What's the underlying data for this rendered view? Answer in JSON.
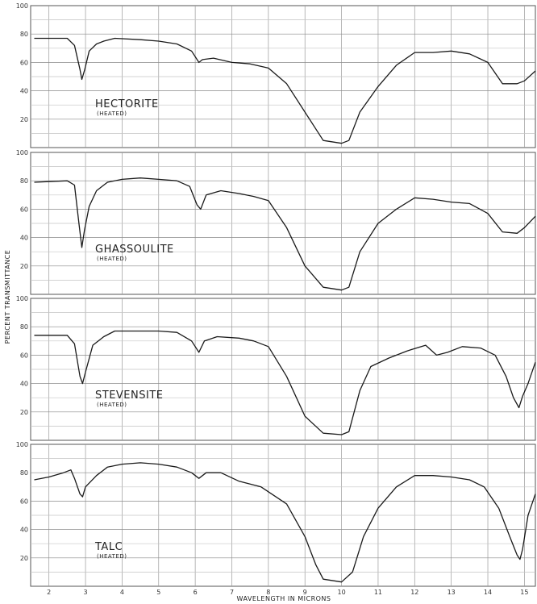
{
  "chart_data": {
    "type": "line",
    "xlabel": "WAVELENGTH IN MICRONS",
    "ylabel": "PERCENT TRANSMITTANCE",
    "xlim": [
      1.5,
      15.3
    ],
    "ylim": [
      0,
      100
    ],
    "x_ticks": [
      "2",
      "3",
      "4",
      "5",
      "6",
      "7",
      "8",
      "9",
      "10",
      "11",
      "12",
      "13",
      "14",
      "15"
    ],
    "y_ticks": [
      "20",
      "40",
      "60",
      "80",
      "100"
    ],
    "grid": true,
    "panels": [
      {
        "name": "HECTORITE",
        "subtitle": "(HEATED)",
        "points": [
          [
            1.6,
            77
          ],
          [
            2.5,
            77
          ],
          [
            2.7,
            72
          ],
          [
            2.85,
            55
          ],
          [
            2.9,
            48
          ],
          [
            2.98,
            55
          ],
          [
            3.1,
            68
          ],
          [
            3.3,
            73
          ],
          [
            3.5,
            75
          ],
          [
            3.8,
            77
          ],
          [
            4.5,
            76
          ],
          [
            5,
            75
          ],
          [
            5.5,
            73
          ],
          [
            5.9,
            68
          ],
          [
            6.1,
            60
          ],
          [
            6.2,
            62
          ],
          [
            6.5,
            63
          ],
          [
            7,
            60
          ],
          [
            7.5,
            59
          ],
          [
            8,
            56
          ],
          [
            8.5,
            45
          ],
          [
            9,
            25
          ],
          [
            9.5,
            5
          ],
          [
            10,
            3
          ],
          [
            10.2,
            5
          ],
          [
            10.5,
            25
          ],
          [
            11,
            43
          ],
          [
            11.5,
            58
          ],
          [
            12,
            67
          ],
          [
            12.5,
            67
          ],
          [
            13,
            68
          ],
          [
            13.5,
            66
          ],
          [
            14,
            60
          ],
          [
            14.4,
            45
          ],
          [
            14.8,
            45
          ],
          [
            15,
            47
          ],
          [
            15.3,
            54
          ]
        ]
      },
      {
        "name": "GHASSOULITE",
        "subtitle": "(HEATED)",
        "points": [
          [
            1.6,
            79
          ],
          [
            2.5,
            80
          ],
          [
            2.7,
            77
          ],
          [
            2.82,
            50
          ],
          [
            2.9,
            33
          ],
          [
            2.97,
            45
          ],
          [
            3.1,
            62
          ],
          [
            3.3,
            73
          ],
          [
            3.6,
            79
          ],
          [
            4,
            81
          ],
          [
            4.5,
            82
          ],
          [
            5,
            81
          ],
          [
            5.5,
            80
          ],
          [
            5.85,
            76
          ],
          [
            6.05,
            63
          ],
          [
            6.15,
            60
          ],
          [
            6.3,
            70
          ],
          [
            6.7,
            73
          ],
          [
            7.2,
            71
          ],
          [
            7.6,
            69
          ],
          [
            8,
            66
          ],
          [
            8.5,
            47
          ],
          [
            9,
            20
          ],
          [
            9.5,
            5
          ],
          [
            10,
            3
          ],
          [
            10.2,
            5
          ],
          [
            10.5,
            30
          ],
          [
            11,
            50
          ],
          [
            11.5,
            60
          ],
          [
            12,
            68
          ],
          [
            12.5,
            67
          ],
          [
            13,
            65
          ],
          [
            13.5,
            64
          ],
          [
            14,
            57
          ],
          [
            14.4,
            44
          ],
          [
            14.8,
            43
          ],
          [
            15,
            47
          ],
          [
            15.3,
            55
          ]
        ]
      },
      {
        "name": "STEVENSITE",
        "subtitle": "(HEATED)",
        "points": [
          [
            1.6,
            74
          ],
          [
            2.5,
            74
          ],
          [
            2.7,
            68
          ],
          [
            2.85,
            45
          ],
          [
            2.92,
            40
          ],
          [
            3,
            48
          ],
          [
            3.2,
            67
          ],
          [
            3.5,
            73
          ],
          [
            3.8,
            77
          ],
          [
            4.5,
            77
          ],
          [
            5,
            77
          ],
          [
            5.5,
            76
          ],
          [
            5.9,
            70
          ],
          [
            6.1,
            62
          ],
          [
            6.25,
            70
          ],
          [
            6.6,
            73
          ],
          [
            7.2,
            72
          ],
          [
            7.6,
            70
          ],
          [
            8,
            66
          ],
          [
            8.5,
            45
          ],
          [
            9,
            17
          ],
          [
            9.5,
            5
          ],
          [
            10,
            4
          ],
          [
            10.2,
            6
          ],
          [
            10.5,
            35
          ],
          [
            10.8,
            52
          ],
          [
            11.3,
            58
          ],
          [
            11.8,
            63
          ],
          [
            12.3,
            67
          ],
          [
            12.6,
            60
          ],
          [
            12.9,
            62
          ],
          [
            13.3,
            66
          ],
          [
            13.8,
            65
          ],
          [
            14.2,
            60
          ],
          [
            14.5,
            45
          ],
          [
            14.7,
            30
          ],
          [
            14.85,
            23
          ],
          [
            14.95,
            31
          ],
          [
            15.1,
            40
          ],
          [
            15.3,
            55
          ]
        ]
      },
      {
        "name": "TALC",
        "subtitle": "(HEATED)",
        "points": [
          [
            1.6,
            75
          ],
          [
            2,
            77
          ],
          [
            2.4,
            80
          ],
          [
            2.6,
            82
          ],
          [
            2.7,
            76
          ],
          [
            2.85,
            65
          ],
          [
            2.92,
            63
          ],
          [
            3,
            70
          ],
          [
            3.3,
            78
          ],
          [
            3.6,
            84
          ],
          [
            4,
            86
          ],
          [
            4.5,
            87
          ],
          [
            5,
            86
          ],
          [
            5.5,
            84
          ],
          [
            5.9,
            80
          ],
          [
            6.1,
            76
          ],
          [
            6.3,
            80
          ],
          [
            6.7,
            80
          ],
          [
            7.2,
            74
          ],
          [
            7.8,
            70
          ],
          [
            8.5,
            58
          ],
          [
            9,
            35
          ],
          [
            9.3,
            15
          ],
          [
            9.5,
            5
          ],
          [
            10,
            3
          ],
          [
            10.3,
            10
          ],
          [
            10.6,
            35
          ],
          [
            11,
            55
          ],
          [
            11.5,
            70
          ],
          [
            12,
            78
          ],
          [
            12.5,
            78
          ],
          [
            13,
            77
          ],
          [
            13.5,
            75
          ],
          [
            13.9,
            70
          ],
          [
            14.3,
            55
          ],
          [
            14.6,
            35
          ],
          [
            14.8,
            22
          ],
          [
            14.88,
            19
          ],
          [
            14.95,
            26
          ],
          [
            15.1,
            50
          ],
          [
            15.3,
            65
          ]
        ]
      }
    ]
  }
}
